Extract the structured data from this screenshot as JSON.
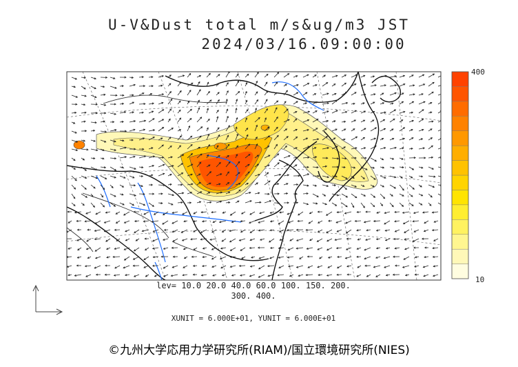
{
  "map": {
    "title_line1": "U-V&Dust total m/s&ug/m3 JST",
    "title_line2": "2024/03/16.09:00:00",
    "contour_levels_line1": "lev= 10.0 20.0 40.0 60.0 100. 150. 200.",
    "contour_levels_line2": "300. 400.",
    "vector_units": "XUNIT = 6.000E+01, YUNIT = 6.000E+01",
    "credit": "©九州大学応用力学研究所(RIAM)/国立環境研究所(NIES)",
    "colorbar": {
      "max_label": "400",
      "min_label": "10",
      "colors": [
        "#fffde0",
        "#fff8b8",
        "#fff690",
        "#fff260",
        "#ffee30",
        "#ffe400",
        "#ffd400",
        "#ffc200",
        "#ffae00",
        "#ff9800",
        "#ff8200",
        "#ff6c00",
        "#ff5500",
        "#ff4200"
      ]
    },
    "colors": {
      "coast": "#111111",
      "river": "#1a6cff",
      "border": "#333333",
      "vector": "#222222"
    }
  }
}
